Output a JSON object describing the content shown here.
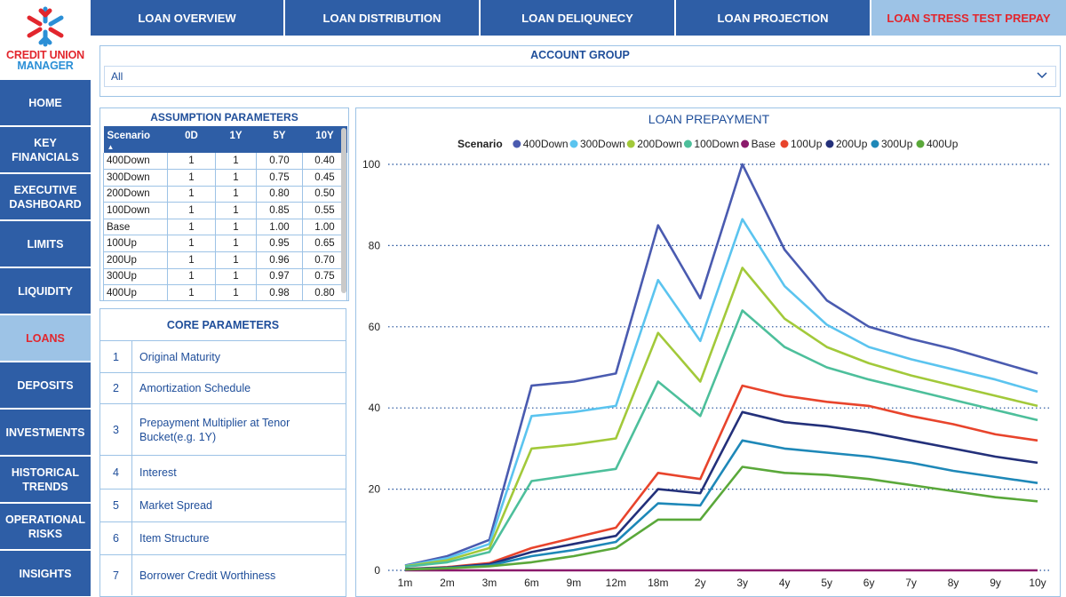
{
  "logo": {
    "line1": "CREDIT UNION",
    "line2": "MANAGER"
  },
  "tabs": [
    {
      "label": "LOAN OVERVIEW",
      "active": false
    },
    {
      "label": "LOAN DISTRIBUTION",
      "active": false
    },
    {
      "label": "LOAN DELIQUNECY",
      "active": false
    },
    {
      "label": "LOAN PROJECTION",
      "active": false
    },
    {
      "label": "LOAN STRESS TEST PREPAY",
      "active": true
    }
  ],
  "sidebar": [
    {
      "label": "HOME"
    },
    {
      "label": "KEY FINANCIALS"
    },
    {
      "label": "EXECUTIVE DASHBOARD"
    },
    {
      "label": "LIMITS"
    },
    {
      "label": "LIQUIDITY"
    },
    {
      "label": "LOANS",
      "active": true
    },
    {
      "label": "DEPOSITS"
    },
    {
      "label": "INVESTMENTS"
    },
    {
      "label": "HISTORICAL TRENDS"
    },
    {
      "label": "OPERATIONAL RISKS"
    },
    {
      "label": "INSIGHTS"
    }
  ],
  "account_group": {
    "title": "ACCOUNT GROUP",
    "value": "All"
  },
  "assumption": {
    "title": "ASSUMPTION PARAMETERS",
    "columns": [
      "Scenario",
      "0D",
      "1Y",
      "5Y",
      "10Y"
    ],
    "sort_indicator": "▲",
    "rows": [
      [
        "400Down",
        "1",
        "1",
        "0.70",
        "0.40"
      ],
      [
        "300Down",
        "1",
        "1",
        "0.75",
        "0.45"
      ],
      [
        "200Down",
        "1",
        "1",
        "0.80",
        "0.50"
      ],
      [
        "100Down",
        "1",
        "1",
        "0.85",
        "0.55"
      ],
      [
        "Base",
        "1",
        "1",
        "1.00",
        "1.00"
      ],
      [
        "100Up",
        "1",
        "1",
        "0.95",
        "0.65"
      ],
      [
        "200Up",
        "1",
        "1",
        "0.96",
        "0.70"
      ],
      [
        "300Up",
        "1",
        "1",
        "0.97",
        "0.75"
      ],
      [
        "400Up",
        "1",
        "1",
        "0.98",
        "0.80"
      ]
    ]
  },
  "core": {
    "title": "CORE PARAMETERS",
    "items": [
      {
        "num": "1",
        "text": "Original Maturity"
      },
      {
        "num": "2",
        "text": "Amortization Schedule"
      },
      {
        "num": "3",
        "text": "Prepayment Multiplier at Tenor Bucket(e.g. 1Y)"
      },
      {
        "num": "4",
        "text": "Interest"
      },
      {
        "num": "5",
        "text": "Market Spread"
      },
      {
        "num": "6",
        "text": "Item Structure"
      },
      {
        "num": "7",
        "text": "Borrower Credit Worthiness"
      }
    ]
  },
  "chart_data": {
    "type": "line",
    "title": "LOAN PREPAYMENT",
    "legend_title": "Scenario",
    "legend_position": "top",
    "categories": [
      "1m",
      "2m",
      "3m",
      "6m",
      "9m",
      "12m",
      "18m",
      "2y",
      "3y",
      "4y",
      "5y",
      "6y",
      "7y",
      "8y",
      "9y",
      "10y"
    ],
    "ylim": [
      0,
      100
    ],
    "yticks": [
      0,
      20,
      40,
      60,
      80,
      100
    ],
    "grid": true,
    "series": [
      {
        "name": "400Down",
        "color": "#4a5bb0",
        "values": [
          1.2,
          3.5,
          7.5,
          45.5,
          46.5,
          48.5,
          85,
          67,
          100,
          79,
          66.5,
          60,
          57,
          54.5,
          51.5,
          48.5
        ]
      },
      {
        "name": "300Down",
        "color": "#5bc4ef",
        "values": [
          1.1,
          3.0,
          6.5,
          38,
          39,
          40.5,
          71.5,
          56.5,
          86.5,
          70,
          60.5,
          55,
          52,
          49.5,
          47,
          44
        ]
      },
      {
        "name": "200Down",
        "color": "#a2c93a",
        "values": [
          1.0,
          2.5,
          5.5,
          30,
          31,
          32.5,
          58.5,
          46.5,
          74.5,
          62,
          55,
          51,
          48,
          45.5,
          43,
          40.5
        ]
      },
      {
        "name": "100Down",
        "color": "#4dbf9b",
        "values": [
          0.9,
          2.0,
          4.5,
          22,
          23.5,
          25,
          46.5,
          38,
          64,
          55,
          50,
          47,
          44.5,
          42,
          39.5,
          37
        ]
      },
      {
        "name": "Base",
        "color": "#8b1a6b",
        "values": [
          0,
          0,
          0,
          0,
          0,
          0,
          0,
          0,
          0,
          0,
          0,
          0,
          0,
          0,
          0,
          0
        ]
      },
      {
        "name": "100Up",
        "color": "#e8442c",
        "values": [
          0.3,
          0.8,
          1.8,
          5.5,
          8,
          10.5,
          24,
          22.5,
          45.5,
          43,
          41.5,
          40.5,
          38,
          36,
          33.5,
          32
        ]
      },
      {
        "name": "200Up",
        "color": "#23307a",
        "values": [
          0.3,
          0.7,
          1.5,
          4.5,
          6.5,
          8.5,
          20,
          19,
          39,
          36.5,
          35.5,
          34,
          32,
          30,
          28,
          26.5
        ]
      },
      {
        "name": "300Up",
        "color": "#1e88b8",
        "values": [
          0.2,
          0.6,
          1.2,
          3.5,
          5,
          7,
          16.5,
          16,
          32,
          30,
          29,
          28,
          26.5,
          24.5,
          23,
          21.5
        ]
      },
      {
        "name": "400Up",
        "color": "#5aa83a",
        "values": [
          0.2,
          0.5,
          1.0,
          2,
          3.5,
          5.5,
          12.5,
          12.5,
          25.5,
          24,
          23.5,
          22.5,
          21,
          19.5,
          18,
          17
        ]
      }
    ]
  }
}
